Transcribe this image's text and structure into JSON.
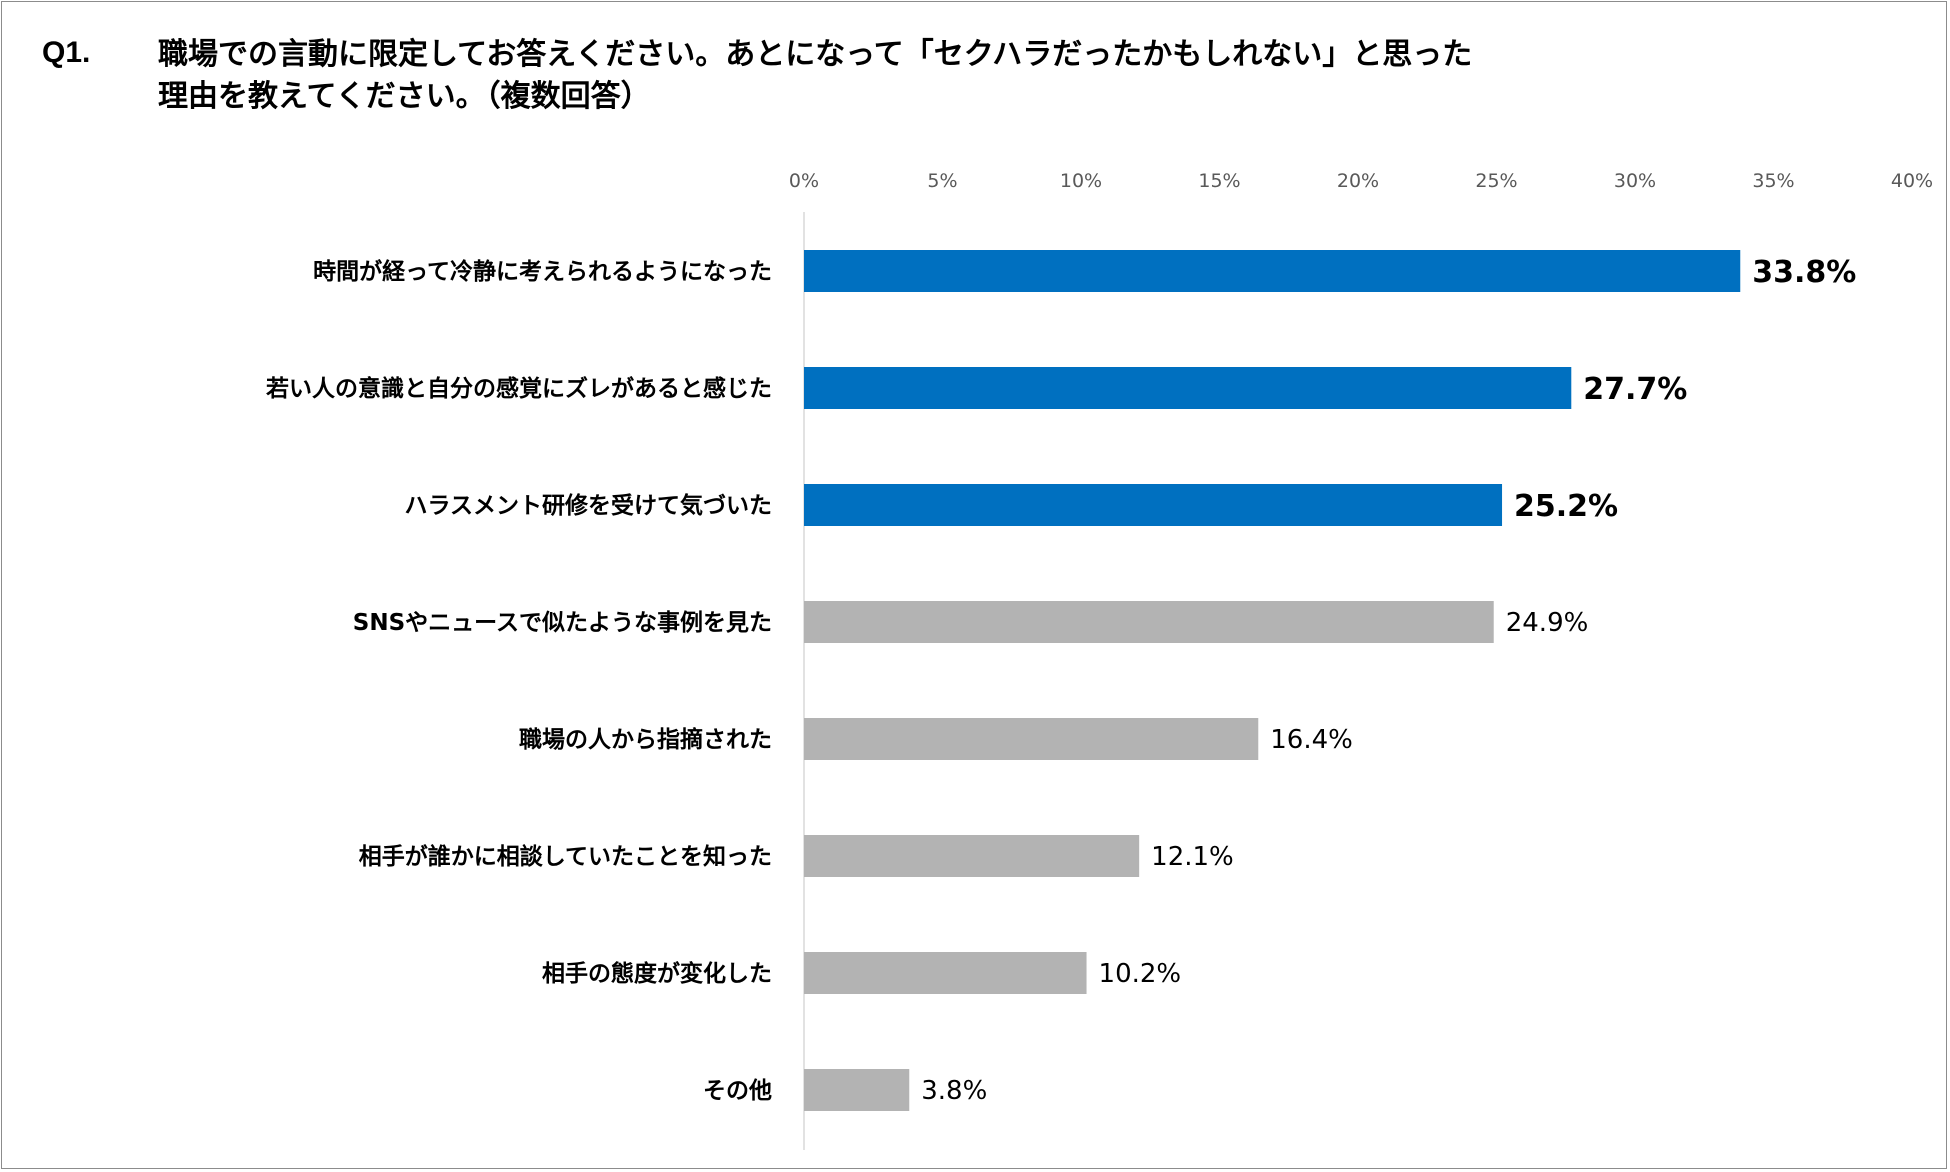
{
  "question": {
    "number": "Q1.",
    "line1": "職場での言動に限定してお答えください。あとになって「セクハラだったかもしれない」と思った",
    "line2": "理由を教えてください。（複数回答）"
  },
  "colors": {
    "highlight": "#0070C0",
    "normal": "#B3B3B3",
    "axis": "#D9D9D9",
    "frame": "#8C8C8C"
  },
  "chart_data": {
    "type": "bar",
    "orientation": "horizontal",
    "title": "職場での言動に限定してお答えください。あとになって「セクハラだったかもしれない」と思った理由を教えてください。（複数回答）",
    "xlabel": "",
    "ylabel": "",
    "xlim": [
      0,
      40
    ],
    "ticks": [
      0,
      5,
      10,
      15,
      20,
      25,
      30,
      35,
      40
    ],
    "tick_labels": [
      "0%",
      "5%",
      "10%",
      "15%",
      "20%",
      "25%",
      "30%",
      "35%",
      "40%"
    ],
    "grid": false,
    "categories": [
      "時間が経って冷静に考えられるようになった",
      "若い人の意識と自分の感覚にズレがあると感じた",
      "ハラスメント研修を受けて気づいた",
      "SNSやニュースで似たような事例を見た",
      "職場の人から指摘された",
      "相手が誰かに相談していたことを知った",
      "相手の態度が変化した",
      "その他"
    ],
    "values": [
      33.8,
      27.7,
      25.2,
      24.9,
      16.4,
      12.1,
      10.2,
      3.8
    ],
    "value_labels": [
      "33.8%",
      "27.7%",
      "25.2%",
      "24.9%",
      "16.4%",
      "12.1%",
      "10.2%",
      "3.8%"
    ],
    "highlighted": [
      true,
      true,
      true,
      false,
      false,
      false,
      false,
      false
    ]
  }
}
